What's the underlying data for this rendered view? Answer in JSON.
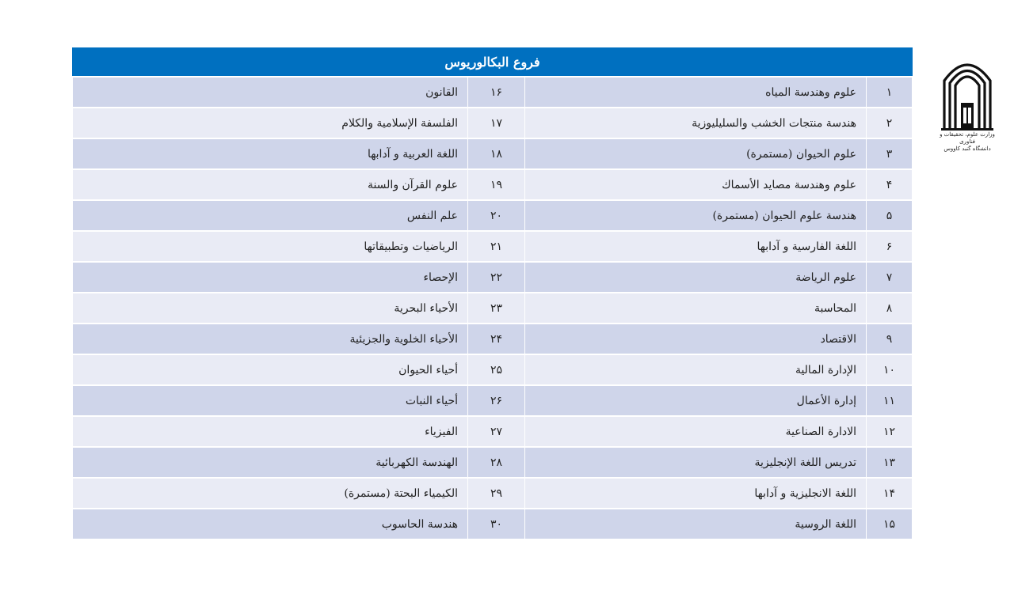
{
  "header": {
    "title": "فروع البكالوريوس"
  },
  "rows": [
    {
      "n1": "١",
      "a": "علوم وهندسة المياه",
      "n2": "١۶",
      "b": "القانون"
    },
    {
      "n1": "٢",
      "a": "هندسة منتجات الخشب والسليليوزية",
      "n2": "١٧",
      "b": "الفلسفة الإسلامية والكلام"
    },
    {
      "n1": "٣",
      "a": "علوم الحيوان (مستمرة)",
      "n2": "١٨",
      "b": "اللغة العربية و آدابها"
    },
    {
      "n1": "۴",
      "a": "علوم وهندسة مصايد الأسماك",
      "n2": "١٩",
      "b": "علوم القرآن والسنة"
    },
    {
      "n1": "۵",
      "a": "هندسة علوم الحيوان (مستمرة)",
      "n2": "٢٠",
      "b": "علم النفس"
    },
    {
      "n1": "۶",
      "a": "اللغة الفارسية و آدابها",
      "n2": "٢١",
      "b": "الرياضيات وتطبيقاتها"
    },
    {
      "n1": "٧",
      "a": "علوم الرياضة",
      "n2": "٢٢",
      "b": "الإحصاء"
    },
    {
      "n1": "٨",
      "a": "المحاسبة",
      "n2": "٢٣",
      "b": "الأحياء البحرية"
    },
    {
      "n1": "٩",
      "a": "الاقتصاد",
      "n2": "٢۴",
      "b": "الأحياء الخلوية والجزيئية"
    },
    {
      "n1": "١٠",
      "a": "الإدارة المالية",
      "n2": "٢۵",
      "b": "أحياء الحيوان"
    },
    {
      "n1": "١١",
      "a": "إدارة الأعمال",
      "n2": "٢۶",
      "b": "أحياء النبات"
    },
    {
      "n1": "١٢",
      "a": "الادارة الصناعية",
      "n2": "٢٧",
      "b": "الفيزياء"
    },
    {
      "n1": "١٣",
      "a": "تدريس اللغة الإنجليزية",
      "n2": "٢٨",
      "b": "الهندسة الكهربائية"
    },
    {
      "n1": "١۴",
      "a": "اللغة الانجليزية و آدابها",
      "n2": "٢٩",
      "b": "الكيمياء البحتة (مستمرة)"
    },
    {
      "n1": "١۵",
      "a": "اللغة الروسية",
      "n2": "٣٠",
      "b": "هندسة الحاسوب"
    }
  ],
  "logo": {
    "icon": "university-emblem-icon",
    "caption_line1": "وزارت علوم، تحقیقات و فناوری",
    "caption_line2": "دانشگاه گنبد کاووس"
  },
  "colors": {
    "header": "#0070c0",
    "row_dark": "#cfd5ea",
    "row_light": "#e9ebf5"
  }
}
